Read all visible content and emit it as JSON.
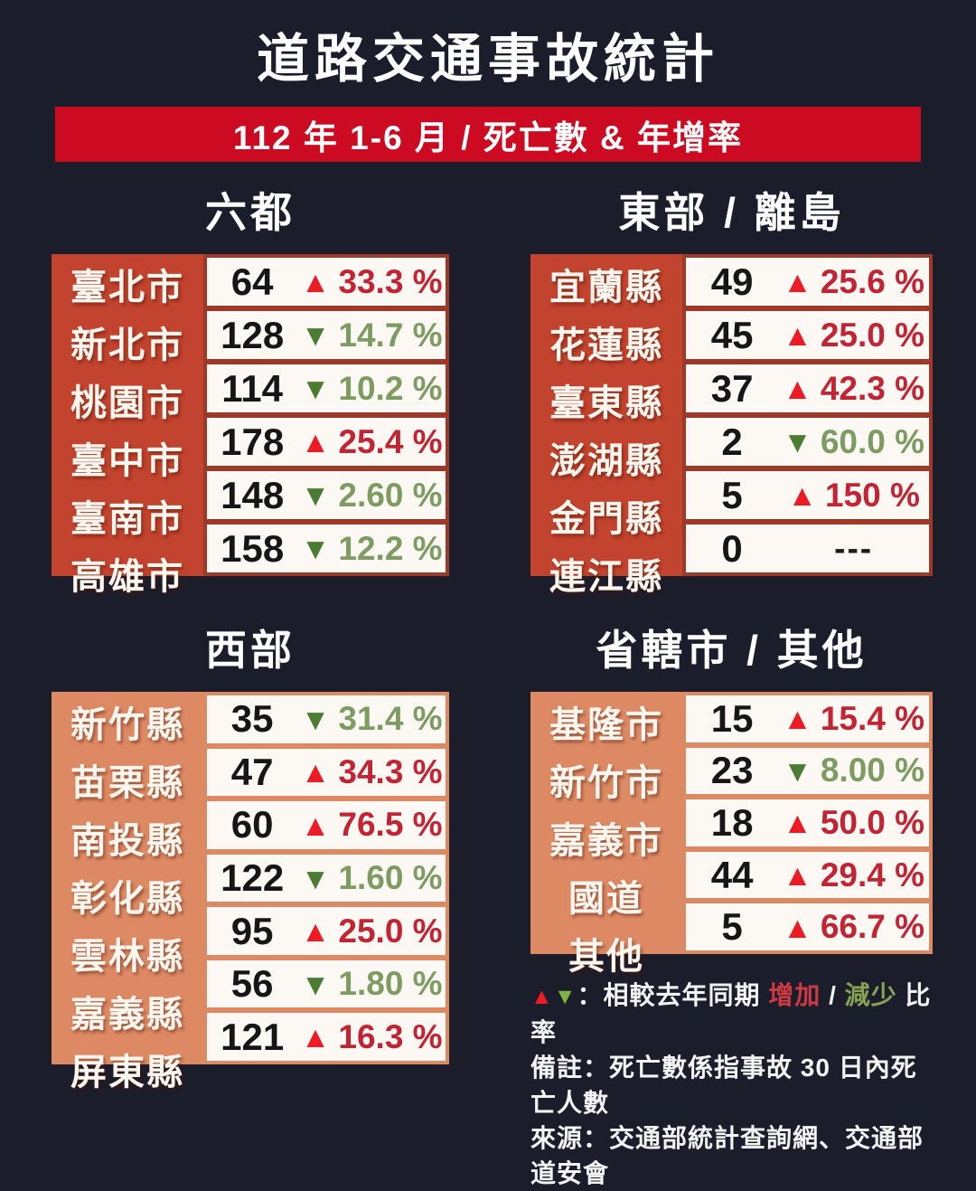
{
  "page": {
    "title": "道路交通事故統計",
    "subtitle": "112 年 1-6 月 / 死亡數 & 年增率"
  },
  "colors": {
    "background": "#1b1d2b",
    "banner_red": "#cc0a22",
    "dark_red_label": "#c2432e",
    "dark_red_frame": "#9e3829",
    "salmon": "#dd8a64",
    "cell_white": "#fcf8f4",
    "up_arrow_red": "#ed1c24",
    "up_text_red": "#c22434",
    "down_arrow_green": "#4c7c33",
    "down_text_green": "#7e9c62"
  },
  "tables": [
    {
      "id": "six-municipalities",
      "title": "六都",
      "theme": "dark-red",
      "rows": [
        {
          "label": "臺北市",
          "value": "64",
          "direction": "up",
          "change": "33.3 %"
        },
        {
          "label": "新北市",
          "value": "128",
          "direction": "down",
          "change": "14.7 %"
        },
        {
          "label": "桃園市",
          "value": "114",
          "direction": "down",
          "change": "10.2 %"
        },
        {
          "label": "臺中市",
          "value": "178",
          "direction": "up",
          "change": "25.4 %"
        },
        {
          "label": "臺南市",
          "value": "148",
          "direction": "down",
          "change": "2.60 %"
        },
        {
          "label": "高雄市",
          "value": "158",
          "direction": "down",
          "change": "12.2 %"
        }
      ]
    },
    {
      "id": "east-and-islands",
      "title": "東部 / 離島",
      "theme": "dark-red",
      "rows": [
        {
          "label": "宜蘭縣",
          "value": "49",
          "direction": "up",
          "change": "25.6 %"
        },
        {
          "label": "花蓮縣",
          "value": "45",
          "direction": "up",
          "change": "25.0 %"
        },
        {
          "label": "臺東縣",
          "value": "37",
          "direction": "up",
          "change": "42.3 %"
        },
        {
          "label": "澎湖縣",
          "value": "2",
          "direction": "down",
          "change": "60.0 %"
        },
        {
          "label": "金門縣",
          "value": "5",
          "direction": "up",
          "change": "150 %"
        },
        {
          "label": "連江縣",
          "value": "0",
          "direction": "none",
          "change": "---"
        }
      ]
    },
    {
      "id": "west",
      "title": "西部",
      "theme": "salmon",
      "rows": [
        {
          "label": "新竹縣",
          "value": "35",
          "direction": "down",
          "change": "31.4 %"
        },
        {
          "label": "苗栗縣",
          "value": "47",
          "direction": "up",
          "change": "34.3 %"
        },
        {
          "label": "南投縣",
          "value": "60",
          "direction": "up",
          "change": "76.5 %"
        },
        {
          "label": "彰化縣",
          "value": "122",
          "direction": "down",
          "change": "1.60 %"
        },
        {
          "label": "雲林縣",
          "value": "95",
          "direction": "up",
          "change": "25.0 %"
        },
        {
          "label": "嘉義縣",
          "value": "56",
          "direction": "down",
          "change": "1.80 %"
        },
        {
          "label": "屏東縣",
          "value": "121",
          "direction": "up",
          "change": "16.3 %"
        }
      ]
    },
    {
      "id": "provincial-cities-others",
      "title": "省轄市 / 其他",
      "theme": "salmon",
      "rows": [
        {
          "label": "基隆市",
          "value": "15",
          "direction": "up",
          "change": "15.4 %"
        },
        {
          "label": "新竹市",
          "value": "23",
          "direction": "down",
          "change": "8.00 %"
        },
        {
          "label": "嘉義市",
          "value": "18",
          "direction": "up",
          "change": "50.0 %"
        },
        {
          "label": "國道",
          "value": "44",
          "direction": "up",
          "change": "29.4 %"
        },
        {
          "label": "其他",
          "value": "5",
          "direction": "up",
          "change": "66.7 %"
        }
      ]
    }
  ],
  "footer": {
    "legend": {
      "up_symbol": "▲",
      "down_symbol": "▼",
      "prefix": "：相較去年同期 ",
      "increase": "增加",
      "separator": " / ",
      "decrease": "減少",
      "suffix": " 比率"
    },
    "note": "備註：死亡數係指事故 30 日內死亡人數",
    "source": "來源：交通部統計查詢網、交通部道安會"
  },
  "chart_data": [
    {
      "type": "table",
      "title": "六都",
      "columns": [
        "region",
        "deaths",
        "yoy_change_pct"
      ],
      "rows": [
        [
          "臺北市",
          64,
          33.3
        ],
        [
          "新北市",
          128,
          -14.7
        ],
        [
          "桃園市",
          114,
          -10.2
        ],
        [
          "臺中市",
          178,
          25.4
        ],
        [
          "臺南市",
          148,
          -2.6
        ],
        [
          "高雄市",
          158,
          -12.2
        ]
      ]
    },
    {
      "type": "table",
      "title": "東部 / 離島",
      "columns": [
        "region",
        "deaths",
        "yoy_change_pct"
      ],
      "rows": [
        [
          "宜蘭縣",
          49,
          25.6
        ],
        [
          "花蓮縣",
          45,
          25.0
        ],
        [
          "臺東縣",
          37,
          42.3
        ],
        [
          "澎湖縣",
          2,
          -60.0
        ],
        [
          "金門縣",
          5,
          150
        ],
        [
          "連江縣",
          0,
          null
        ]
      ]
    },
    {
      "type": "table",
      "title": "西部",
      "columns": [
        "region",
        "deaths",
        "yoy_change_pct"
      ],
      "rows": [
        [
          "新竹縣",
          35,
          -31.4
        ],
        [
          "苗栗縣",
          47,
          34.3
        ],
        [
          "南投縣",
          60,
          76.5
        ],
        [
          "彰化縣",
          122,
          -1.6
        ],
        [
          "雲林縣",
          95,
          25.0
        ],
        [
          "嘉義縣",
          56,
          -1.8
        ],
        [
          "屏東縣",
          121,
          16.3
        ]
      ]
    },
    {
      "type": "table",
      "title": "省轄市 / 其他",
      "columns": [
        "region",
        "deaths",
        "yoy_change_pct"
      ],
      "rows": [
        [
          "基隆市",
          15,
          15.4
        ],
        [
          "新竹市",
          23,
          -8.0
        ],
        [
          "嘉義市",
          18,
          50.0
        ],
        [
          "國道",
          44,
          29.4
        ],
        [
          "其他",
          5,
          66.7
        ]
      ]
    }
  ]
}
